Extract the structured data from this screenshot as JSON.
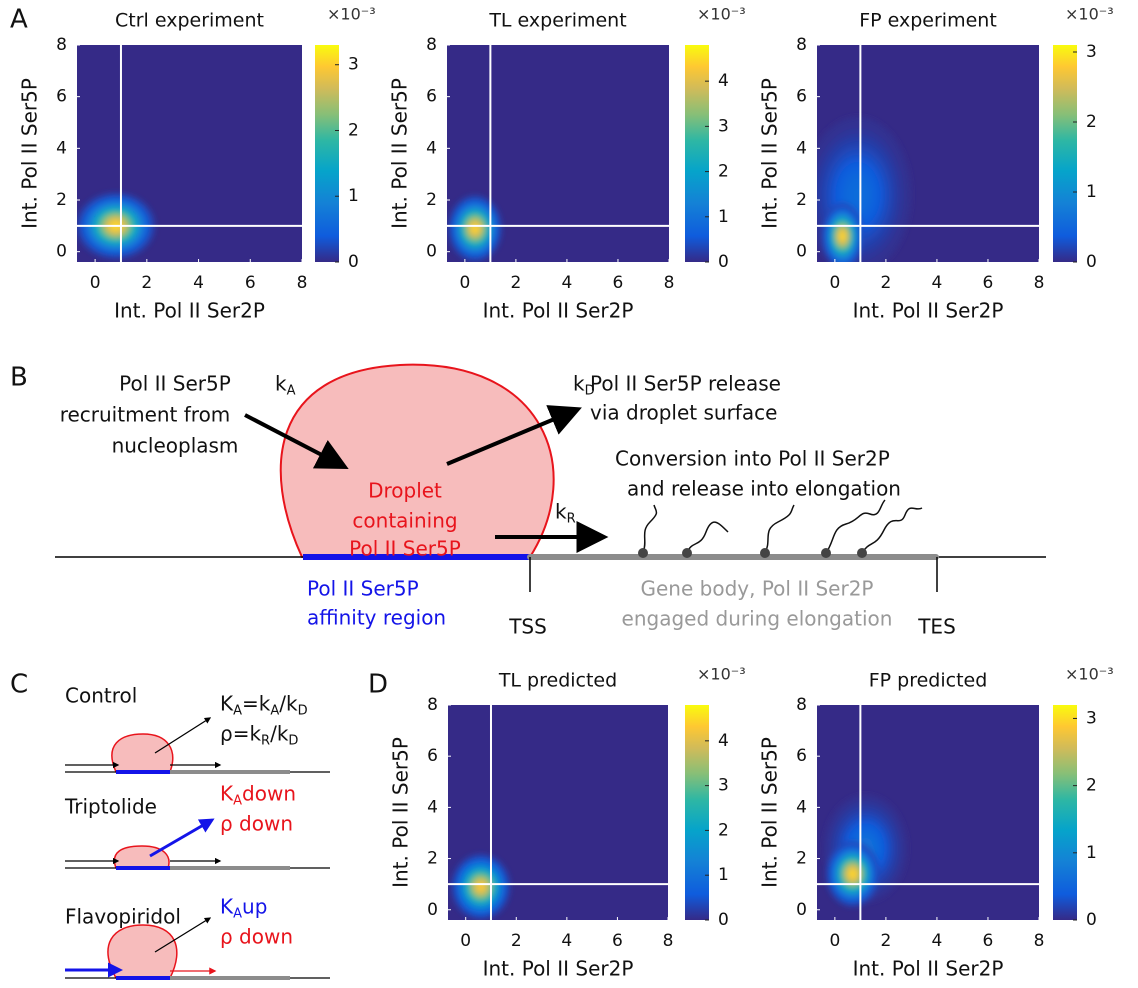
{
  "panel_labels": [
    "A",
    "B",
    "C",
    "D"
  ],
  "chart_data": [
    {
      "type": "heatmap",
      "title": "Ctrl experiment",
      "xlabel": "Int. Pol II Ser2P",
      "ylabel": "Int. Pol II Ser5P",
      "xlim": [
        -0.7,
        8
      ],
      "ylim": [
        -0.4,
        8
      ],
      "xticks": [
        0,
        2,
        4,
        6,
        8
      ],
      "yticks": [
        0,
        2,
        4,
        6,
        8
      ],
      "ref_lines": {
        "x": 1,
        "y": 1
      },
      "blobs": [
        {
          "x": 0.8,
          "y": 1.0,
          "sx": 0.65,
          "sy": 0.55,
          "peak": 3.2
        }
      ],
      "clim": [
        0,
        3.3
      ],
      "cticks": [
        0,
        1,
        2,
        3
      ],
      "colorbar_scale": "×10⁻³"
    },
    {
      "type": "heatmap",
      "title": "TL experiment",
      "xlabel": "Int. Pol II Ser2P",
      "ylabel": "Int. Pol II Ser5P",
      "xlim": [
        -0.7,
        8
      ],
      "ylim": [
        -0.4,
        8
      ],
      "xticks": [
        0,
        2,
        4,
        6,
        8
      ],
      "yticks": [
        0,
        2,
        4,
        6,
        8
      ],
      "ref_lines": {
        "x": 1,
        "y": 1
      },
      "blobs": [
        {
          "x": 0.4,
          "y": 0.9,
          "sx": 0.45,
          "sy": 0.55,
          "peak": 4.6
        }
      ],
      "clim": [
        0,
        4.8
      ],
      "cticks": [
        0,
        1,
        2,
        3,
        4
      ],
      "colorbar_scale": "×10⁻³"
    },
    {
      "type": "heatmap",
      "title": "FP experiment",
      "xlabel": "Int. Pol II Ser2P",
      "ylabel": "Int. Pol II Ser5P",
      "xlim": [
        -0.7,
        8
      ],
      "ylim": [
        -0.4,
        8
      ],
      "xticks": [
        0,
        2,
        4,
        6,
        8
      ],
      "yticks": [
        0,
        2,
        4,
        6,
        8
      ],
      "ref_lines": {
        "x": 1,
        "y": 1
      },
      "blobs": [
        {
          "x": 0.9,
          "y": 2.2,
          "sx": 0.9,
          "sy": 1.3,
          "peak": 0.6
        },
        {
          "x": 0.3,
          "y": 0.6,
          "sx": 0.35,
          "sy": 0.55,
          "peak": 3.0
        }
      ],
      "clim": [
        0,
        3.1
      ],
      "cticks": [
        0,
        1,
        2,
        3
      ],
      "colorbar_scale": "×10⁻³"
    },
    {
      "type": "heatmap",
      "title": "TL predicted",
      "xlabel": "Int. Pol II Ser2P",
      "ylabel": "Int. Pol II Ser5P",
      "xlim": [
        -0.7,
        8
      ],
      "ylim": [
        -0.4,
        8
      ],
      "xticks": [
        0,
        2,
        4,
        6,
        8
      ],
      "yticks": [
        0,
        2,
        4,
        6,
        8
      ],
      "ref_lines": {
        "x": 1,
        "y": 1
      },
      "blobs": [
        {
          "x": 0.6,
          "y": 0.9,
          "sx": 0.5,
          "sy": 0.55,
          "peak": 4.5
        }
      ],
      "clim": [
        0,
        4.8
      ],
      "cticks": [
        0,
        1,
        2,
        3,
        4
      ],
      "colorbar_scale": "×10⁻³"
    },
    {
      "type": "heatmap",
      "title": "FP predicted",
      "xlabel": "Int. Pol II Ser2P",
      "ylabel": "Int. Pol II Ser5P",
      "xlim": [
        -0.7,
        8
      ],
      "ylim": [
        -0.4,
        8
      ],
      "xticks": [
        0,
        2,
        4,
        6,
        8
      ],
      "yticks": [
        0,
        2,
        4,
        6,
        8
      ],
      "ref_lines": {
        "x": 1,
        "y": 1
      },
      "blobs": [
        {
          "x": 1.2,
          "y": 2.4,
          "sx": 0.7,
          "sy": 0.9,
          "peak": 0.7
        },
        {
          "x": 0.7,
          "y": 1.4,
          "sx": 0.45,
          "sy": 0.55,
          "peak": 3.1
        }
      ],
      "clim": [
        0,
        3.2
      ],
      "cticks": [
        0,
        1,
        2,
        3
      ],
      "colorbar_scale": "×10⁻³"
    }
  ],
  "diagram_b": {
    "recruitment": [
      "Pol II Ser5P",
      "recruitment from",
      "nucleoplasm"
    ],
    "k_a": [
      {
        "text": "k",
        "sub": "A"
      }
    ],
    "droplet": [
      "Droplet",
      "containing",
      "Pol II Ser5P"
    ],
    "k_d": [
      {
        "text": "k",
        "sub": "D"
      }
    ],
    "release": [
      "Pol II Ser5P release",
      "via droplet surface"
    ],
    "conversion": [
      "Conversion into Pol II Ser2P",
      "and release into elongation"
    ],
    "k_r": [
      {
        "text": "k",
        "sub": "R"
      }
    ],
    "affinity": [
      "Pol II Ser5P",
      "affinity region"
    ],
    "tss": "TSS",
    "gene_body": [
      "Gene body, Pol II Ser2P",
      "engaged during elongation"
    ],
    "tes": "TES"
  },
  "diagram_c": {
    "rows": [
      {
        "name": "Control",
        "lines": [
          [
            {
              "text": "K",
              "sub": "A"
            },
            {
              "text": "=k",
              "sub": "A"
            },
            {
              "text": "/k",
              "sub": "D"
            }
          ],
          [
            {
              "text": "ρ=k",
              "sub": "R"
            },
            {
              "text": "/k",
              "sub": "D"
            }
          ]
        ],
        "colors": [
          "#111111",
          "#111111"
        ]
      },
      {
        "name": "Triptolide",
        "lines": [
          [
            {
              "text": "K",
              "sub": "A"
            },
            {
              "text": " down"
            }
          ],
          [
            {
              "text": "ρ down"
            }
          ]
        ],
        "colors": [
          "#e8141c",
          "#e8141c"
        ]
      },
      {
        "name": "Flavopiridol",
        "lines": [
          [
            {
              "text": "K",
              "sub": "A"
            },
            {
              "text": " up"
            }
          ],
          [
            {
              "text": "ρ down"
            }
          ]
        ],
        "colors": [
          "#1414e8",
          "#e8141c"
        ]
      }
    ]
  }
}
